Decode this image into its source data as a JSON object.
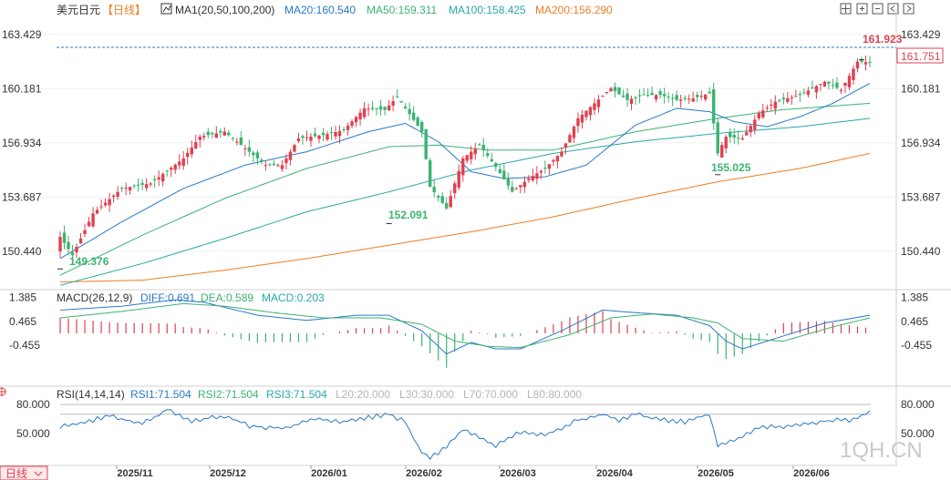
{
  "header": {
    "symbol": "美元日元",
    "period": "【日线】",
    "ma_label": "MA1(20,50,100,200)",
    "ma20": "MA20:160.540",
    "ma50": "MA50:159.311",
    "ma100": "MA100:158.425",
    "ma200": "MA200:156.290"
  },
  "macd_header": {
    "name": "MACD(26,12,9)",
    "diff": "DIFF:0.691",
    "dea": "DEA:0.589",
    "macd": "MACD:0.203"
  },
  "rsi_header": {
    "name": "RSI(14,14,14)",
    "rsi1": "RSI1:71.504",
    "rsi2": "RSI2:71.504",
    "rsi3": "RSI3:71.504",
    "l20": "L20:20.000",
    "l30": "L30:30.000",
    "l70": "L70:70.000",
    "l80": "L80:80.000"
  },
  "price_ticks": [
    "163.429",
    "160.181",
    "156.934",
    "153.687",
    "150.440"
  ],
  "macd_ticks": [
    "1.385",
    "0.465",
    "-0.455"
  ],
  "rsi_ticks": [
    "80.000",
    "50.000"
  ],
  "last_price": "161.751",
  "annotations": {
    "high": "161.923",
    "low1": "149.376",
    "low2": "152.091",
    "low3": "155.025"
  },
  "bottom_tab": "日线",
  "watermark": "1QH.CN",
  "colors": {
    "up": "#e04050",
    "down": "#3cb371",
    "ma20": "#2a78c8",
    "ma50": "#3cb371",
    "ma100": "#2aa8a8",
    "ma200": "#ef7d22",
    "diff": "#2a78c8",
    "dea": "#3cb371"
  },
  "chart_data": {
    "type": "candlestick",
    "x_ticks": [
      "2025/11",
      "2025/12",
      "2026/01",
      "2026/02",
      "2026/03",
      "2026/04",
      "2026/05",
      "2026/06"
    ],
    "y_range": [
      148.3,
      164.4
    ],
    "anchors": {
      "close": [
        [
          0,
          151.3
        ],
        [
          3,
          150.2
        ],
        [
          8,
          152.7
        ],
        [
          15,
          154.2
        ],
        [
          22,
          154.5
        ],
        [
          30,
          156.0
        ],
        [
          34,
          157.3
        ],
        [
          40,
          157.6
        ],
        [
          46,
          156.4
        ],
        [
          50,
          155.6
        ],
        [
          54,
          155.6
        ],
        [
          58,
          157.2
        ],
        [
          64,
          157.4
        ],
        [
          69,
          157.7
        ],
        [
          74,
          159.0
        ],
        [
          79,
          158.9
        ],
        [
          82,
          159.7
        ],
        [
          84,
          159.0
        ],
        [
          88,
          157.6
        ],
        [
          90,
          154.3
        ],
        [
          94,
          153.0
        ],
        [
          98,
          156.0
        ],
        [
          102,
          156.8
        ],
        [
          106,
          155.5
        ],
        [
          110,
          154.0
        ],
        [
          114,
          154.8
        ],
        [
          118,
          155.4
        ],
        [
          122,
          156.4
        ],
        [
          126,
          158.4
        ],
        [
          130,
          159.3
        ],
        [
          134,
          160.2
        ],
        [
          138,
          159.5
        ],
        [
          142,
          159.8
        ],
        [
          146,
          159.8
        ],
        [
          150,
          159.5
        ],
        [
          154,
          159.6
        ],
        [
          158,
          159.9
        ],
        [
          160,
          156.3
        ],
        [
          162,
          157.3
        ],
        [
          166,
          157.2
        ],
        [
          170,
          158.7
        ],
        [
          174,
          159.4
        ],
        [
          180,
          159.8
        ],
        [
          186,
          160.6
        ],
        [
          190,
          160.1
        ],
        [
          194,
          161.8
        ],
        [
          197,
          161.75
        ]
      ],
      "ma20": [
        [
          0,
          150.0
        ],
        [
          15,
          152.2
        ],
        [
          30,
          154.2
        ],
        [
          45,
          155.6
        ],
        [
          60,
          156.4
        ],
        [
          75,
          157.6
        ],
        [
          84,
          158.1
        ],
        [
          92,
          157.0
        ],
        [
          100,
          155.2
        ],
        [
          108,
          154.8
        ],
        [
          118,
          154.9
        ],
        [
          128,
          155.6
        ],
        [
          140,
          158.0
        ],
        [
          150,
          159.0
        ],
        [
          158,
          158.8
        ],
        [
          164,
          158.2
        ],
        [
          172,
          157.9
        ],
        [
          180,
          158.5
        ],
        [
          188,
          159.3
        ],
        [
          197,
          160.5
        ]
      ],
      "ma50": [
        [
          0,
          149.0
        ],
        [
          20,
          151.4
        ],
        [
          40,
          153.6
        ],
        [
          60,
          155.4
        ],
        [
          80,
          156.7
        ],
        [
          92,
          156.8
        ],
        [
          104,
          156.5
        ],
        [
          120,
          156.5
        ],
        [
          140,
          157.6
        ],
        [
          160,
          158.4
        ],
        [
          175,
          158.9
        ],
        [
          197,
          159.3
        ]
      ],
      "ma100": [
        [
          0,
          148.4
        ],
        [
          20,
          149.7
        ],
        [
          40,
          151.2
        ],
        [
          60,
          152.8
        ],
        [
          80,
          154.0
        ],
        [
          100,
          155.3
        ],
        [
          120,
          156.3
        ],
        [
          140,
          157.0
        ],
        [
          160,
          157.5
        ],
        [
          180,
          157.9
        ],
        [
          197,
          158.4
        ]
      ],
      "ma200": [
        [
          0,
          148.6
        ],
        [
          20,
          148.7
        ],
        [
          40,
          149.3
        ],
        [
          60,
          150.0
        ],
        [
          80,
          150.8
        ],
        [
          100,
          151.6
        ],
        [
          120,
          152.5
        ],
        [
          140,
          153.6
        ],
        [
          160,
          154.6
        ],
        [
          180,
          155.4
        ],
        [
          197,
          156.3
        ]
      ],
      "diff": [
        [
          0,
          0.9
        ],
        [
          15,
          1.05
        ],
        [
          28,
          1.3
        ],
        [
          35,
          1.2
        ],
        [
          48,
          0.7
        ],
        [
          60,
          0.5
        ],
        [
          72,
          0.7
        ],
        [
          80,
          0.7
        ],
        [
          88,
          0.1
        ],
        [
          94,
          -0.8
        ],
        [
          100,
          -0.35
        ],
        [
          106,
          -0.6
        ],
        [
          112,
          -0.6
        ],
        [
          122,
          0.1
        ],
        [
          132,
          0.9
        ],
        [
          140,
          0.8
        ],
        [
          150,
          0.7
        ],
        [
          158,
          0.3
        ],
        [
          162,
          -0.3
        ],
        [
          166,
          -0.6
        ],
        [
          176,
          -0.1
        ],
        [
          186,
          0.4
        ],
        [
          197,
          0.7
        ]
      ],
      "dea": [
        [
          0,
          0.6
        ],
        [
          15,
          0.85
        ],
        [
          30,
          1.15
        ],
        [
          40,
          1.05
        ],
        [
          52,
          0.8
        ],
        [
          64,
          0.6
        ],
        [
          78,
          0.6
        ],
        [
          88,
          0.35
        ],
        [
          96,
          -0.3
        ],
        [
          104,
          -0.5
        ],
        [
          112,
          -0.55
        ],
        [
          124,
          -0.05
        ],
        [
          134,
          0.6
        ],
        [
          144,
          0.75
        ],
        [
          154,
          0.6
        ],
        [
          160,
          0.4
        ],
        [
          166,
          -0.2
        ],
        [
          176,
          -0.3
        ],
        [
          188,
          0.25
        ],
        [
          197,
          0.6
        ]
      ],
      "rsi": [
        [
          0,
          57
        ],
        [
          6,
          62
        ],
        [
          12,
          68
        ],
        [
          20,
          60
        ],
        [
          26,
          75
        ],
        [
          32,
          63
        ],
        [
          40,
          68
        ],
        [
          46,
          58
        ],
        [
          54,
          55
        ],
        [
          62,
          66
        ],
        [
          68,
          62
        ],
        [
          74,
          66
        ],
        [
          80,
          70
        ],
        [
          84,
          62
        ],
        [
          88,
          30
        ],
        [
          90,
          25
        ],
        [
          94,
          36
        ],
        [
          98,
          55
        ],
        [
          102,
          45
        ],
        [
          106,
          38
        ],
        [
          112,
          52
        ],
        [
          118,
          48
        ],
        [
          126,
          64
        ],
        [
          132,
          70
        ],
        [
          136,
          64
        ],
        [
          140,
          70
        ],
        [
          146,
          64
        ],
        [
          152,
          62
        ],
        [
          158,
          70
        ],
        [
          160,
          38
        ],
        [
          164,
          43
        ],
        [
          170,
          57
        ],
        [
          176,
          57
        ],
        [
          182,
          60
        ],
        [
          188,
          64
        ],
        [
          192,
          63
        ],
        [
          197,
          71.5
        ]
      ]
    }
  }
}
